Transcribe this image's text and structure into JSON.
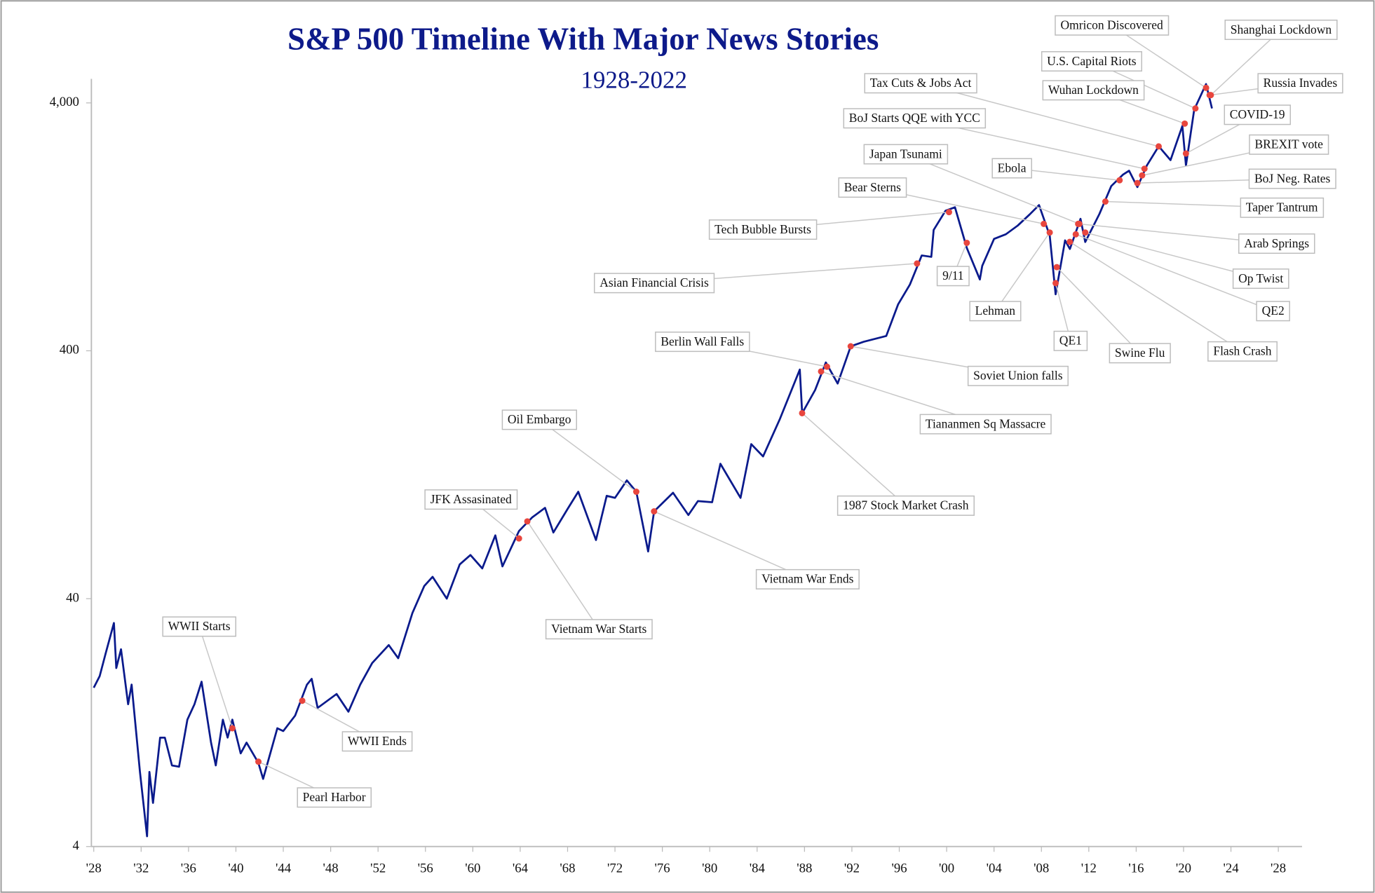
{
  "chart_data": {
    "type": "line",
    "title": "S&P 500 Timeline With Major News Stories",
    "subtitle": "1928-2022",
    "log_y": true,
    "xlim": [
      1927.8,
      2030
    ],
    "ylim": [
      4,
      5000
    ],
    "xticks": [
      {
        "value": 1928,
        "label": "'28"
      },
      {
        "value": 1932,
        "label": "'32"
      },
      {
        "value": 1936,
        "label": "'36"
      },
      {
        "value": 1940,
        "label": "'40"
      },
      {
        "value": 1944,
        "label": "'44"
      },
      {
        "value": 1948,
        "label": "'48"
      },
      {
        "value": 1952,
        "label": "'52"
      },
      {
        "value": 1956,
        "label": "'56"
      },
      {
        "value": 1960,
        "label": "'60"
      },
      {
        "value": 1964,
        "label": "'64"
      },
      {
        "value": 1968,
        "label": "'68"
      },
      {
        "value": 1972,
        "label": "'72"
      },
      {
        "value": 1976,
        "label": "'76"
      },
      {
        "value": 1980,
        "label": "'80"
      },
      {
        "value": 1984,
        "label": "'84"
      },
      {
        "value": 1988,
        "label": "'88"
      },
      {
        "value": 1992,
        "label": "'92"
      },
      {
        "value": 1996,
        "label": "'96"
      },
      {
        "value": 2000,
        "label": "'00"
      },
      {
        "value": 2004,
        "label": "'04"
      },
      {
        "value": 2008,
        "label": "'08"
      },
      {
        "value": 2012,
        "label": "'12"
      },
      {
        "value": 2016,
        "label": "'16"
      },
      {
        "value": 2020,
        "label": "'20"
      },
      {
        "value": 2024,
        "label": "'24"
      },
      {
        "value": 2028,
        "label": "'28"
      }
    ],
    "yticks": [
      4,
      40,
      400,
      {
        "value": 4000,
        "label": "4,000"
      }
    ],
    "series": [
      {
        "color": "#0a1a8c",
        "x": [
          1928.0,
          1928.5,
          1929.0,
          1929.7,
          1929.9,
          1930.3,
          1930.9,
          1931.2,
          1931.9,
          1932.5,
          1932.7,
          1933.0,
          1933.6,
          1934.0,
          1934.6,
          1935.2,
          1935.9,
          1936.5,
          1937.1,
          1937.9,
          1938.3,
          1938.9,
          1939.3,
          1939.7,
          1940.4,
          1940.9,
          1941.9,
          1942.3,
          1943.5,
          1944.0,
          1945.0,
          1946.0,
          1946.4,
          1946.9,
          1948.5,
          1949.5,
          1950.5,
          1951.5,
          1952.9,
          1953.7,
          1954.9,
          1955.9,
          1956.6,
          1957.8,
          1958.9,
          1959.8,
          1960.8,
          1961.9,
          1962.5,
          1963.9,
          1965.0,
          1966.1,
          1966.8,
          1968.0,
          1968.9,
          1970.4,
          1971.3,
          1972.0,
          1973.0,
          1973.8,
          1974.8,
          1975.3,
          1976.9,
          1978.2,
          1979.0,
          1980.2,
          1980.9,
          1982.6,
          1983.5,
          1984.5,
          1985.9,
          1987.6,
          1987.8,
          1988.9,
          1989.8,
          1990.8,
          1991.9,
          1993.0,
          1994.9,
          1995.9,
          1996.9,
          1997.9,
          1998.7,
          1998.9,
          1999.9,
          2000.7,
          2001.7,
          2002.8,
          2003.0,
          2004.0,
          2005.0,
          2006.0,
          2007.0,
          2007.8,
          2008.7,
          2009.2,
          2010.0,
          2010.4,
          2011.3,
          2011.7,
          2012.9,
          2013.9,
          2014.9,
          2015.4,
          2016.1,
          2016.9,
          2017.9,
          2018.9,
          2019.9,
          2020.2,
          2020.9,
          2021.9,
          2022.4
        ],
        "values": [
          17.5,
          19.5,
          24,
          31.9,
          21,
          25,
          15,
          18,
          8,
          4.4,
          8,
          6,
          11,
          11,
          8.5,
          8.4,
          13,
          15,
          18.5,
          10.5,
          8.5,
          13,
          11,
          13,
          9.5,
          10.5,
          8.7,
          7.5,
          12,
          11.7,
          13.5,
          18,
          19,
          14.5,
          16.5,
          14,
          18,
          22,
          26,
          23,
          35,
          45,
          49,
          40,
          55,
          60,
          53,
          72,
          54,
          75,
          85,
          93,
          74,
          92,
          108,
          69,
          104,
          102,
          120,
          108,
          62,
          90,
          107,
          87,
          99,
          98,
          140,
          102,
          168,
          150,
          211,
          336,
          224,
          278,
          359,
          295,
          417,
          435,
          459,
          615,
          740,
          970,
          957,
          1229,
          1469,
          1517,
          1040,
          776,
          880,
          1131,
          1181,
          1280,
          1418,
          1549,
          1166,
          676,
          1115,
          1030,
          1363,
          1099,
          1426,
          1848,
          2058,
          2130,
          1829,
          2238,
          2673,
          2351,
          3230,
          2237,
          3756,
          4766,
          3800
        ]
      }
    ],
    "annotations": [
      {
        "text": "WWII Starts",
        "x": 1939.7,
        "y": 12
      },
      {
        "text": "Pearl Harbor",
        "x": 1941.9,
        "y": 8.8
      },
      {
        "text": "WWII Ends",
        "x": 1945.6,
        "y": 15.5
      },
      {
        "text": "JFK Assasinated",
        "x": 1963.9,
        "y": 70
      },
      {
        "text": "Vietnam War Starts",
        "x": 1964.6,
        "y": 82
      },
      {
        "text": "Oil Embargo",
        "x": 1973.8,
        "y": 108
      },
      {
        "text": "Vietnam War Ends",
        "x": 1975.3,
        "y": 90
      },
      {
        "text": "1987 Stock Market Crash",
        "x": 1987.8,
        "y": 224
      },
      {
        "text": "Tiananmen Sq Massacre",
        "x": 1989.4,
        "y": 330
      },
      {
        "text": "Berlin Wall Falls",
        "x": 1989.9,
        "y": 345
      },
      {
        "text": "Soviet Union falls",
        "x": 1991.9,
        "y": 417
      },
      {
        "text": "Asian Financial Crisis",
        "x": 1997.5,
        "y": 900
      },
      {
        "text": "Tech Bubble Bursts",
        "x": 2000.2,
        "y": 1450
      },
      {
        "text": "9/11",
        "x": 2001.7,
        "y": 1090
      },
      {
        "text": "Bear Sterns",
        "x": 2008.2,
        "y": 1300
      },
      {
        "text": "Japan Tsunami",
        "x": 2011.2,
        "y": 1300
      },
      {
        "text": "Lehman",
        "x": 2008.7,
        "y": 1200
      },
      {
        "text": "QE1",
        "x": 2009.2,
        "y": 750
      },
      {
        "text": "Swine Flu",
        "x": 2009.3,
        "y": 870
      },
      {
        "text": "Flash Crash",
        "x": 2010.4,
        "y": 1100
      },
      {
        "text": "QE2",
        "x": 2010.9,
        "y": 1180
      },
      {
        "text": "Op Twist",
        "x": 2011.7,
        "y": 1200
      },
      {
        "text": "Arab Springs",
        "x": 2011.1,
        "y": 1300
      },
      {
        "text": "Taper Tantrum",
        "x": 2013.4,
        "y": 1600
      },
      {
        "text": "BoJ Neg. Rates",
        "x": 2016.1,
        "y": 1900
      },
      {
        "text": "Ebola",
        "x": 2014.6,
        "y": 1950
      },
      {
        "text": "BoJ Starts QQE with YCC",
        "x": 2016.7,
        "y": 2170
      },
      {
        "text": "BREXIT vote",
        "x": 2016.5,
        "y": 2040
      },
      {
        "text": "Tax Cuts & Jobs Act",
        "x": 2017.9,
        "y": 2670
      },
      {
        "text": "COVID-19",
        "x": 2020.2,
        "y": 2500
      },
      {
        "text": "Wuhan Lockdown",
        "x": 2020.1,
        "y": 3300
      },
      {
        "text": "U.S. Capital Riots",
        "x": 2021.0,
        "y": 3800
      },
      {
        "text": "Omricon Discovered",
        "x": 2021.9,
        "y": 4600
      },
      {
        "text": "Shanghai Lockdown",
        "x": 2022.3,
        "y": 4300
      },
      {
        "text": "Russia Invades",
        "x": 2022.2,
        "y": 4300
      }
    ]
  }
}
